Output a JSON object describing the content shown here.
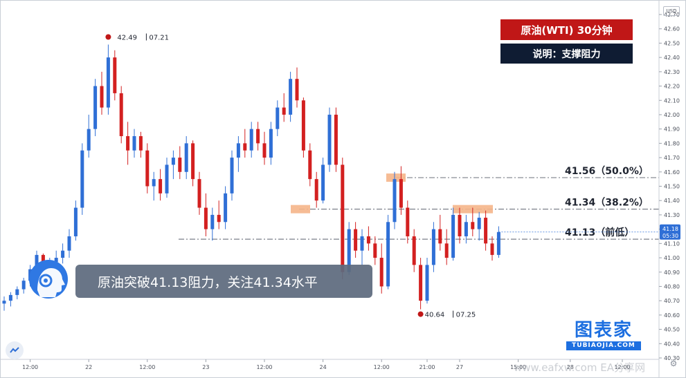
{
  "title": "原油(WTI)  30分钟",
  "subtitle": "说明：支撑阻力",
  "banner": "原油突破41.13阻力，关注41.34水平",
  "currency": "USD",
  "logo": {
    "main": "图表家",
    "sub": "TUBIAOJIA.COM"
  },
  "watermark": "www.eafxw.com  EA分享网",
  "colors": {
    "up": "#2f6fd6",
    "down": "#d32020",
    "title_bg": "#c01717",
    "subtitle_bg": "#0f1c33",
    "highlight": "#f5b58a",
    "level_line": "#7a7f88",
    "price_tag": "#2f6fd6"
  },
  "chart_data": {
    "type": "candlestick",
    "y_axis": {
      "min": 40.3,
      "max": 42.7,
      "step": 0.1,
      "ticks": [
        "40.30",
        "40.40",
        "40.50",
        "40.60",
        "40.70",
        "40.80",
        "40.90",
        "41.00",
        "41.10",
        "41.20",
        "41.30",
        "41.40",
        "41.50",
        "41.60",
        "41.70",
        "41.80",
        "41.90",
        "42.00",
        "42.10",
        "42.20",
        "42.30",
        "42.40",
        "42.50",
        "42.60",
        "42.70"
      ]
    },
    "x_ticks": [
      {
        "label": "12:00",
        "bar": 4
      },
      {
        "label": "22",
        "bar": 13
      },
      {
        "label": "12:00",
        "bar": 22
      },
      {
        "label": "23",
        "bar": 31
      },
      {
        "label": "12:00",
        "bar": 40
      },
      {
        "label": "24",
        "bar": 49
      },
      {
        "label": "12:00",
        "bar": 58
      },
      {
        "label": "21:00",
        "bar": 65
      },
      {
        "label": "27",
        "bar": 70
      },
      {
        "label": "15:00",
        "bar": 79
      },
      {
        "label": "28",
        "bar": 87
      },
      {
        "label": "12:00",
        "bar": 95
      }
    ],
    "levels": [
      {
        "value": 41.56,
        "label": "41.56（50.0%）"
      },
      {
        "value": 41.34,
        "label": "41.34（38.2%）"
      },
      {
        "value": 41.13,
        "label": "41.13（前低）"
      }
    ],
    "annotations": {
      "high": {
        "price": "42.49",
        "date": "07.21",
        "value": 42.49
      },
      "low": {
        "price": "40.64",
        "date": "07.25",
        "value": 40.64
      }
    },
    "last_price": {
      "price": "41.18",
      "time": "05:30",
      "value": 41.18
    },
    "candles": [
      [
        40.68,
        40.73,
        40.63,
        40.7
      ],
      [
        40.7,
        40.76,
        40.66,
        40.74
      ],
      [
        40.74,
        40.8,
        40.71,
        40.78
      ],
      [
        40.78,
        40.86,
        40.75,
        40.84
      ],
      [
        40.84,
        40.95,
        40.8,
        40.92
      ],
      [
        40.92,
        41.05,
        40.88,
        41.02
      ],
      [
        41.02,
        41.03,
        40.85,
        40.88
      ],
      [
        40.88,
        41.0,
        40.84,
        40.97
      ],
      [
        40.97,
        41.05,
        40.9,
        41.0
      ],
      [
        41.0,
        41.1,
        40.96,
        41.05
      ],
      [
        41.05,
        41.2,
        41.0,
        41.15
      ],
      [
        41.15,
        41.4,
        41.12,
        41.35
      ],
      [
        41.35,
        41.8,
        41.3,
        41.75
      ],
      [
        41.75,
        42.0,
        41.7,
        41.9
      ],
      [
        41.9,
        42.25,
        41.85,
        42.2
      ],
      [
        42.2,
        42.3,
        42.0,
        42.05
      ],
      [
        42.05,
        42.49,
        42.0,
        42.4
      ],
      [
        42.4,
        42.45,
        42.1,
        42.15
      ],
      [
        42.15,
        42.2,
        41.8,
        41.85
      ],
      [
        41.85,
        41.95,
        41.65,
        41.75
      ],
      [
        41.75,
        41.9,
        41.7,
        41.85
      ],
      [
        41.85,
        41.88,
        41.7,
        41.75
      ],
      [
        41.75,
        41.8,
        41.45,
        41.5
      ],
      [
        41.5,
        41.6,
        41.4,
        41.55
      ],
      [
        41.55,
        41.62,
        41.4,
        41.45
      ],
      [
        41.45,
        41.7,
        41.42,
        41.65
      ],
      [
        41.65,
        41.75,
        41.55,
        41.7
      ],
      [
        41.7,
        41.78,
        41.55,
        41.6
      ],
      [
        41.6,
        41.85,
        41.55,
        41.8
      ],
      [
        41.8,
        41.82,
        41.5,
        41.55
      ],
      [
        41.55,
        41.6,
        41.3,
        41.35
      ],
      [
        41.35,
        41.45,
        41.15,
        41.2
      ],
      [
        41.2,
        41.35,
        41.12,
        41.3
      ],
      [
        41.3,
        41.4,
        41.2,
        41.25
      ],
      [
        41.25,
        41.5,
        41.2,
        41.45
      ],
      [
        41.45,
        41.75,
        41.4,
        41.7
      ],
      [
        41.7,
        41.85,
        41.6,
        41.8
      ],
      [
        41.8,
        41.9,
        41.7,
        41.75
      ],
      [
        41.75,
        41.95,
        41.7,
        41.9
      ],
      [
        41.9,
        41.95,
        41.75,
        41.8
      ],
      [
        41.8,
        41.88,
        41.65,
        41.7
      ],
      [
        41.7,
        41.95,
        41.65,
        41.9
      ],
      [
        41.9,
        42.1,
        41.85,
        42.05
      ],
      [
        42.05,
        42.15,
        41.95,
        42.0
      ],
      [
        42.0,
        42.3,
        41.95,
        42.25
      ],
      [
        42.25,
        42.33,
        42.05,
        42.1
      ],
      [
        42.1,
        42.12,
        41.7,
        41.75
      ],
      [
        41.75,
        41.8,
        41.5,
        41.55
      ],
      [
        41.55,
        41.6,
        41.35,
        41.4
      ],
      [
        41.4,
        41.7,
        41.38,
        41.65
      ],
      [
        41.65,
        42.05,
        41.6,
        42.0
      ],
      [
        42.0,
        42.05,
        41.6,
        41.65
      ],
      [
        41.65,
        41.7,
        40.85,
        40.9
      ],
      [
        40.9,
        41.25,
        40.88,
        41.2
      ],
      [
        41.2,
        41.25,
        41.0,
        41.05
      ],
      [
        41.05,
        41.2,
        40.95,
        41.15
      ],
      [
        41.15,
        41.22,
        41.05,
        41.1
      ],
      [
        41.1,
        41.15,
        40.95,
        41.0
      ],
      [
        41.0,
        41.1,
        40.75,
        40.8
      ],
      [
        40.8,
        41.3,
        40.78,
        41.25
      ],
      [
        41.25,
        41.6,
        41.2,
        41.55
      ],
      [
        41.55,
        41.64,
        41.3,
        41.35
      ],
      [
        41.35,
        41.4,
        41.1,
        41.15
      ],
      [
        41.15,
        41.2,
        40.9,
        40.95
      ],
      [
        40.95,
        41.0,
        40.64,
        40.7
      ],
      [
        40.7,
        41.0,
        40.68,
        40.95
      ],
      [
        40.95,
        41.25,
        40.9,
        41.2
      ],
      [
        41.2,
        41.3,
        41.05,
        41.1
      ],
      [
        41.1,
        41.2,
        40.95,
        41.0
      ],
      [
        41.0,
        41.35,
        40.98,
        41.3
      ],
      [
        41.3,
        41.35,
        41.1,
        41.15
      ],
      [
        41.15,
        41.3,
        41.1,
        41.25
      ],
      [
        41.25,
        41.35,
        41.15,
        41.2
      ],
      [
        41.2,
        41.32,
        41.12,
        41.28
      ],
      [
        41.28,
        41.33,
        41.05,
        41.1
      ],
      [
        41.1,
        41.15,
        40.98,
        41.02
      ],
      [
        41.02,
        41.22,
        41.0,
        41.18
      ]
    ]
  }
}
